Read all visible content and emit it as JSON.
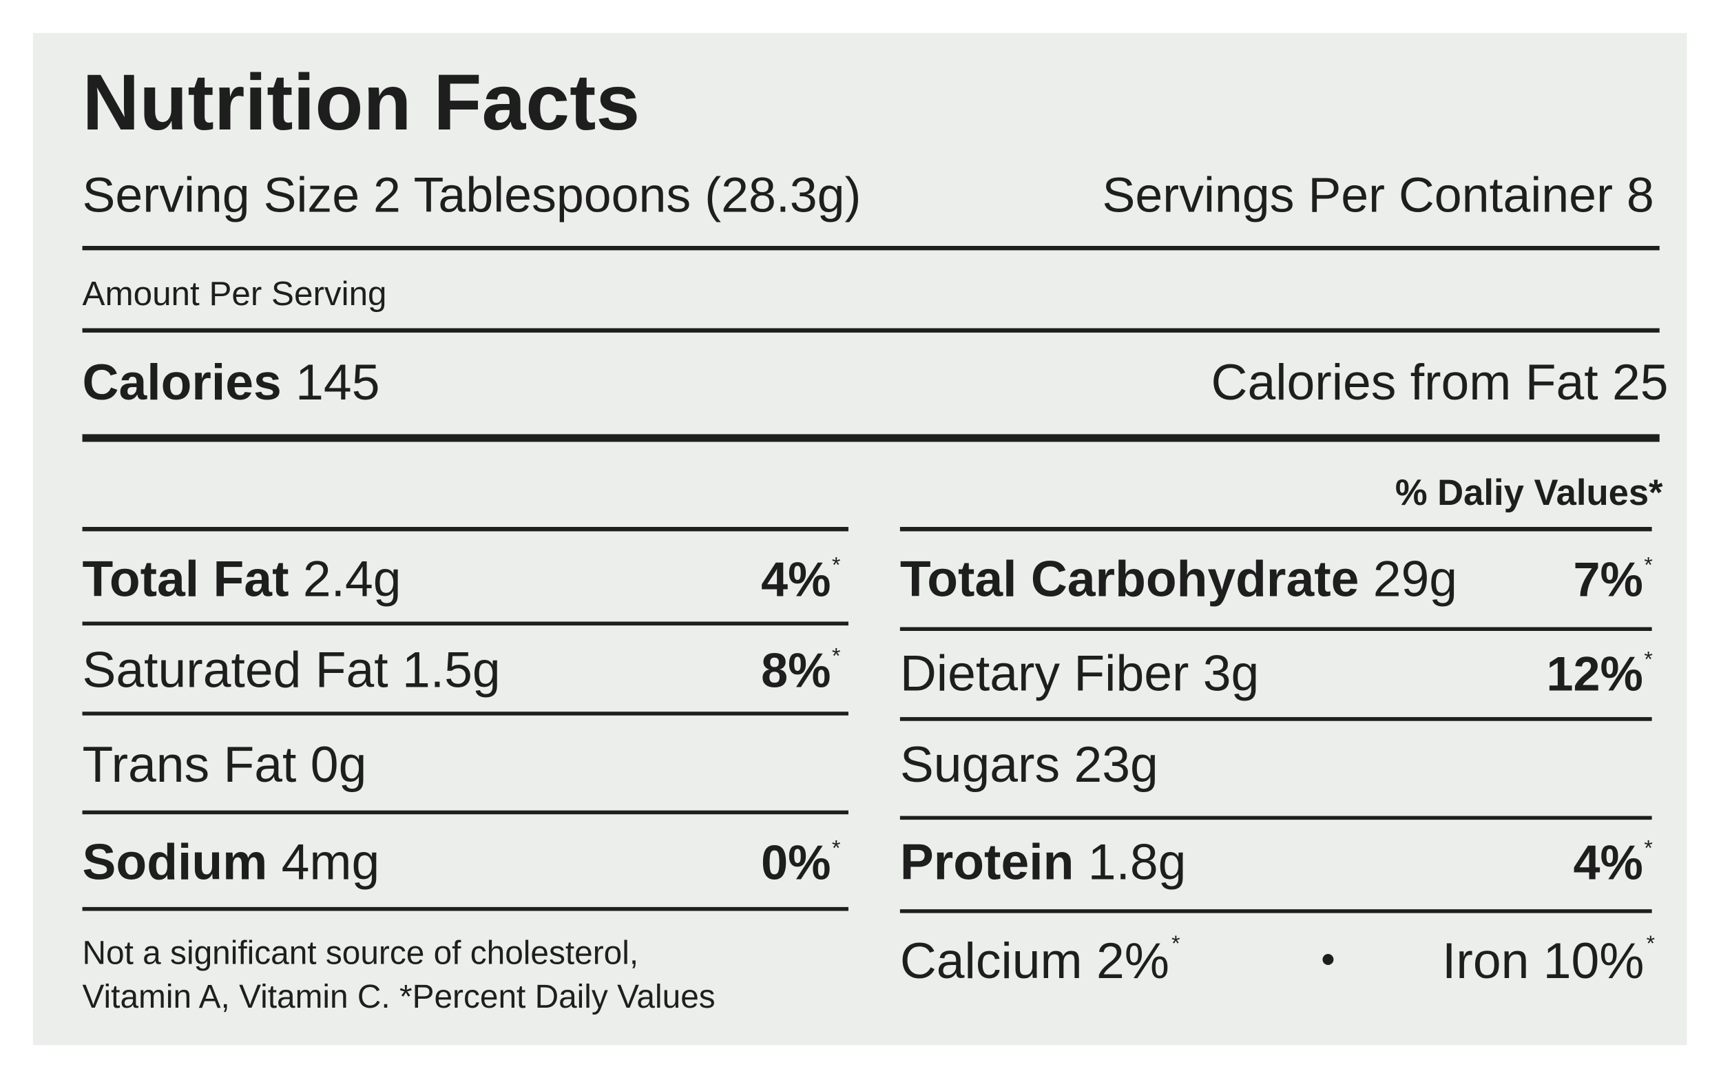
{
  "header": {
    "title": "Nutrition Facts",
    "serving_size": "Serving Size 2 Tablespoons (28.3g)",
    "servings_per_container": "Servings Per Container 8"
  },
  "amount_per_serving": "Amount Per Serving",
  "calories": {
    "label": "Calories",
    "value": "145",
    "from_fat": "Calories from Fat 25"
  },
  "daily_values_heading": "% Daliy Values*",
  "footnote_mark": "*",
  "left_rows": [
    {
      "name": "Total Fat",
      "amount": "2.4g",
      "dv": "4%",
      "bold": true
    },
    {
      "name": "Saturated Fat",
      "amount": "1.5g",
      "dv": "8%",
      "bold": false
    },
    {
      "name": "Trans Fat",
      "amount": "0g",
      "bold": false
    },
    {
      "name": "Sodium",
      "amount": "4mg",
      "dv": "0%",
      "bold": true
    }
  ],
  "right_rows": [
    {
      "name": "Total Carbohydrate",
      "amount": "29g",
      "dv": "7%",
      "bold": true
    },
    {
      "name": "Dietary Fiber",
      "amount": "3g",
      "dv": "12%",
      "bold": false
    },
    {
      "name": "Sugars",
      "amount": "23g",
      "bold": false
    },
    {
      "name": "Protein",
      "amount": "1.8g",
      "dv": "4%",
      "bold": true
    }
  ],
  "note": [
    "Not a significant source of cholesterol,",
    "Vitamin A, Vitamin C. *Percent Daily Values"
  ],
  "minerals": [
    {
      "name": "Calcium",
      "dv": "2%"
    },
    {
      "name": "Iron",
      "dv": "10%"
    }
  ]
}
